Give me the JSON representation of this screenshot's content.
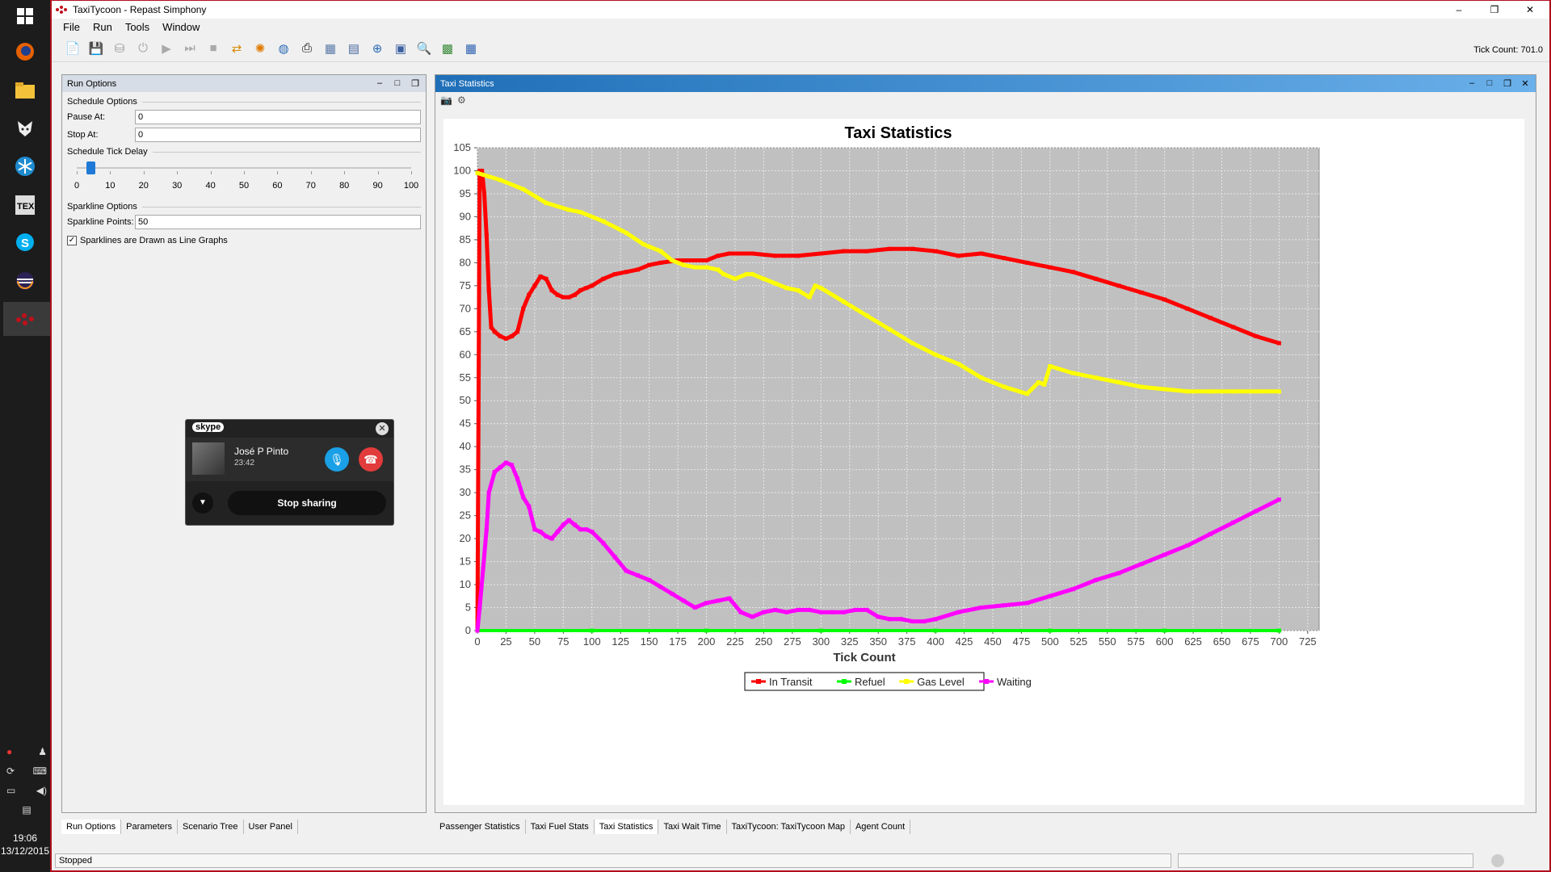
{
  "window": {
    "title": "TaxiTycoon - Repast Simphony",
    "minimize": "–",
    "restore": "❐",
    "close": "✕"
  },
  "menu": [
    "File",
    "Run",
    "Tools",
    "Window"
  ],
  "toolbar": {
    "tick_count": "Tick Count: 701.0"
  },
  "run_options": {
    "title": "Run Options",
    "schedule_options": "Schedule Options",
    "pause_label": "Pause At:",
    "pause_value": "0",
    "stop_label": "Stop At:",
    "stop_value": "0",
    "tick_delay_label": "Schedule Tick Delay",
    "slider_ticks": [
      "0",
      "10",
      "20",
      "30",
      "40",
      "50",
      "60",
      "70",
      "80",
      "90",
      "100"
    ],
    "slider_value": 4,
    "sparkline_options": "Sparkline Options",
    "sparkline_points_label": "Sparkline Points:",
    "sparkline_points_value": "50",
    "sparkline_checkbox": "Sparklines are Drawn as Line Graphs",
    "sparkline_checked": true
  },
  "left_tabs": [
    "Run Options",
    "Parameters",
    "Scenario Tree",
    "User Panel"
  ],
  "stats_panel": {
    "title": "Taxi Statistics"
  },
  "right_tabs": [
    "Passenger Statistics",
    "Taxi Fuel Stats",
    "Taxi Statistics",
    "Taxi Wait Time",
    "TaxiTycoon: TaxiTycoon Map",
    "Agent Count"
  ],
  "status": {
    "text": "Stopped"
  },
  "skype": {
    "logo": "skype",
    "name": "José P Pinto",
    "duration": "23:42",
    "stop_label": "Stop sharing"
  },
  "clock": {
    "time": "19:06",
    "date": "13/12/2015"
  },
  "chart_data": {
    "type": "line",
    "title": "Taxi Statistics",
    "xlabel": "Tick Count",
    "ylabel": "",
    "xlim": [
      0,
      735
    ],
    "ylim": [
      0,
      105
    ],
    "xticks": [
      0,
      25,
      50,
      75,
      100,
      125,
      150,
      175,
      200,
      225,
      250,
      275,
      300,
      325,
      350,
      375,
      400,
      425,
      450,
      475,
      500,
      525,
      550,
      575,
      600,
      625,
      650,
      675,
      700,
      725
    ],
    "yticks": [
      0,
      5,
      10,
      15,
      20,
      25,
      30,
      35,
      40,
      45,
      50,
      55,
      60,
      65,
      70,
      75,
      80,
      85,
      90,
      95,
      100,
      105
    ],
    "grid": true,
    "legend": "bottom-center",
    "series": [
      {
        "name": "In Transit",
        "color": "#ff0000",
        "x": [
          0,
          2,
          4,
          6,
          8,
          10,
          12,
          15,
          20,
          25,
          30,
          35,
          40,
          45,
          50,
          55,
          60,
          65,
          70,
          75,
          80,
          85,
          90,
          95,
          100,
          110,
          120,
          130,
          140,
          150,
          160,
          175,
          190,
          200,
          210,
          220,
          230,
          240,
          260,
          280,
          300,
          320,
          340,
          360,
          380,
          400,
          420,
          440,
          460,
          480,
          500,
          520,
          540,
          560,
          580,
          600,
          620,
          640,
          660,
          680,
          700
        ],
        "values": [
          0,
          100,
          100,
          95,
          86,
          74,
          66,
          65,
          64,
          63.5,
          64,
          65,
          70,
          73,
          75,
          77,
          76.5,
          74,
          73,
          72.5,
          72.5,
          73,
          74,
          74.5,
          75,
          76.5,
          77.5,
          78,
          78.5,
          79.5,
          80,
          80.5,
          80.5,
          80.5,
          81.5,
          82,
          82,
          82,
          81.5,
          81.5,
          82,
          82.5,
          82.5,
          83,
          83,
          82.5,
          81.5,
          82,
          81,
          80,
          79,
          78,
          76.5,
          75,
          73.5,
          72,
          70,
          68,
          66,
          64,
          62.5
        ]
      },
      {
        "name": "Refuel",
        "color": "#00ff00",
        "x": [
          0,
          100,
          200,
          300,
          400,
          500,
          600,
          700
        ],
        "values": [
          0,
          0,
          0,
          0,
          0,
          0,
          0,
          0
        ]
      },
      {
        "name": "Gas Level",
        "color": "#ffff00",
        "x": [
          0,
          20,
          40,
          60,
          80,
          90,
          110,
          130,
          145,
          150,
          160,
          170,
          180,
          190,
          200,
          210,
          215,
          225,
          235,
          240,
          250,
          260,
          270,
          280,
          290,
          295,
          300,
          320,
          340,
          360,
          380,
          400,
          420,
          440,
          460,
          480,
          490,
          495,
          500,
          520,
          540,
          560,
          580,
          600,
          620,
          640,
          660,
          680,
          700
        ],
        "values": [
          99.5,
          98,
          96,
          93,
          91.5,
          91,
          89,
          86.5,
          84,
          83.5,
          82.5,
          80.5,
          79.5,
          79,
          79,
          78.5,
          77.5,
          76.5,
          77.5,
          77.5,
          76.5,
          75.5,
          74.5,
          74,
          72.5,
          75,
          74.5,
          71.5,
          68.5,
          65.5,
          62.5,
          60,
          58,
          55,
          53,
          51.5,
          54,
          53.5,
          57.5,
          56,
          55,
          54,
          53,
          52.5,
          52,
          52,
          52,
          52,
          52
        ]
      },
      {
        "name": "Waiting",
        "color": "#ff00ff",
        "x": [
          0,
          2,
          5,
          8,
          10,
          15,
          20,
          25,
          30,
          35,
          40,
          45,
          50,
          55,
          60,
          65,
          70,
          75,
          80,
          85,
          90,
          95,
          100,
          110,
          120,
          130,
          140,
          150,
          160,
          170,
          180,
          190,
          200,
          210,
          220,
          230,
          240,
          250,
          260,
          270,
          280,
          290,
          300,
          310,
          320,
          330,
          340,
          350,
          360,
          370,
          380,
          390,
          400,
          420,
          440,
          460,
          480,
          500,
          520,
          540,
          560,
          580,
          600,
          620,
          640,
          660,
          680,
          700
        ],
        "values": [
          0,
          5,
          13.5,
          22,
          30,
          34.5,
          35.5,
          36.5,
          36,
          33,
          29,
          27,
          22,
          21.5,
          20.5,
          20,
          21.5,
          23,
          24,
          23,
          22,
          22,
          21.5,
          19,
          16,
          13,
          12,
          11,
          9.5,
          8,
          6.5,
          5,
          6,
          6.5,
          7,
          4,
          3,
          4,
          4.5,
          4,
          4.5,
          4.5,
          4,
          4,
          4,
          4.5,
          4.5,
          3,
          2.5,
          2.5,
          2,
          2,
          2.5,
          4,
          5,
          5.5,
          6,
          7.5,
          9,
          11,
          12.5,
          14.5,
          16.5,
          18.5,
          21,
          23.5,
          26,
          28.5
        ]
      }
    ]
  }
}
